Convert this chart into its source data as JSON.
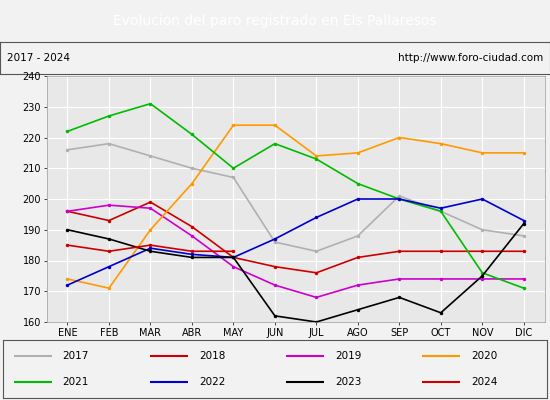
{
  "title": "Evolucion del paro registrado en Els Pallaresos",
  "subtitle_left": "2017 - 2024",
  "subtitle_right": "http://www.foro-ciudad.com",
  "months": [
    "ENE",
    "FEB",
    "MAR",
    "ABR",
    "MAY",
    "JUN",
    "JUL",
    "AGO",
    "SEP",
    "OCT",
    "NOV",
    "DIC"
  ],
  "ylim": [
    160,
    240
  ],
  "yticks": [
    160,
    170,
    180,
    190,
    200,
    210,
    220,
    230,
    240
  ],
  "series": {
    "2017": {
      "color": "#b0b0b0",
      "values": [
        216,
        218,
        214,
        210,
        207,
        186,
        183,
        188,
        201,
        196,
        190,
        188
      ]
    },
    "2018": {
      "color": "#cc0000",
      "values": [
        196,
        193,
        199,
        191,
        181,
        178,
        176,
        181,
        183,
        183,
        183,
        183
      ]
    },
    "2019": {
      "color": "#cc00cc",
      "values": [
        196,
        198,
        197,
        188,
        178,
        172,
        168,
        172,
        174,
        174,
        174,
        174
      ]
    },
    "2020": {
      "color": "#ff9900",
      "values": [
        174,
        171,
        190,
        205,
        224,
        224,
        214,
        215,
        220,
        218,
        215,
        215
      ]
    },
    "2021": {
      "color": "#00bb00",
      "values": [
        222,
        227,
        231,
        221,
        210,
        218,
        213,
        205,
        200,
        196,
        176,
        171
      ]
    },
    "2022": {
      "color": "#0000cc",
      "values": [
        172,
        178,
        184,
        182,
        181,
        187,
        194,
        200,
        200,
        197,
        200,
        193
      ]
    },
    "2023": {
      "color": "#000000",
      "values": [
        190,
        187,
        183,
        181,
        181,
        162,
        160,
        164,
        168,
        163,
        175,
        192
      ]
    },
    "2024": {
      "color": "#cc0000",
      "values": [
        185,
        183,
        185,
        183,
        183,
        null,
        null,
        null,
        null,
        null,
        null,
        null
      ]
    }
  },
  "bg_color": "#f2f2f2",
  "plot_bg": "#e8e8e8",
  "title_bg": "#4a7fc1",
  "title_color": "white",
  "grid_color": "white",
  "title_fontsize": 10,
  "subtitle_fontsize": 7.5,
  "tick_fontsize": 7,
  "legend_fontsize": 7.5
}
